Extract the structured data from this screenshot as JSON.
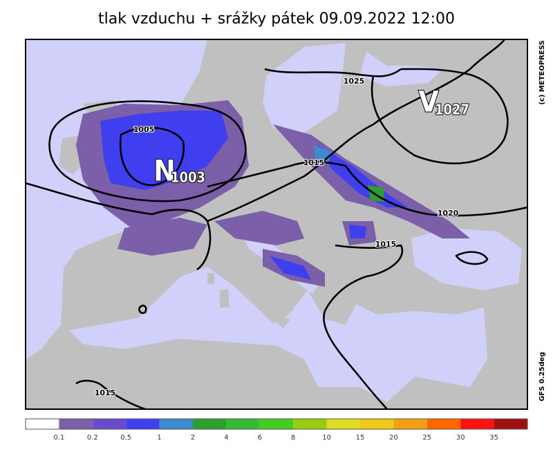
{
  "title": "tlak vzduchu + srážky   pátek 09.09.2022 12:00",
  "map": {
    "isobar_labels": [
      "1025",
      "1005",
      "1015",
      "1020",
      "1015",
      "1015"
    ],
    "pressure_centers": [
      {
        "symbol": "N",
        "value": "1003"
      },
      {
        "symbol": "V",
        "value": "1027"
      }
    ],
    "copyright": "(c) METEOPRESS",
    "model": "GFS 0.25deg"
  },
  "legend": {
    "colors": [
      "#ffffff",
      "#7b5fa8",
      "#6a4acd",
      "#3f3ff0",
      "#3a8ccf",
      "#2ca02c",
      "#33bb33",
      "#44cc22",
      "#99cc11",
      "#dddd22",
      "#f0c818",
      "#f5a010",
      "#ff6600",
      "#ff1111",
      "#a01010"
    ],
    "labels": [
      0.1,
      0.2,
      0.5,
      1,
      2,
      4,
      6,
      8,
      10,
      15,
      20,
      25,
      30,
      35
    ]
  }
}
